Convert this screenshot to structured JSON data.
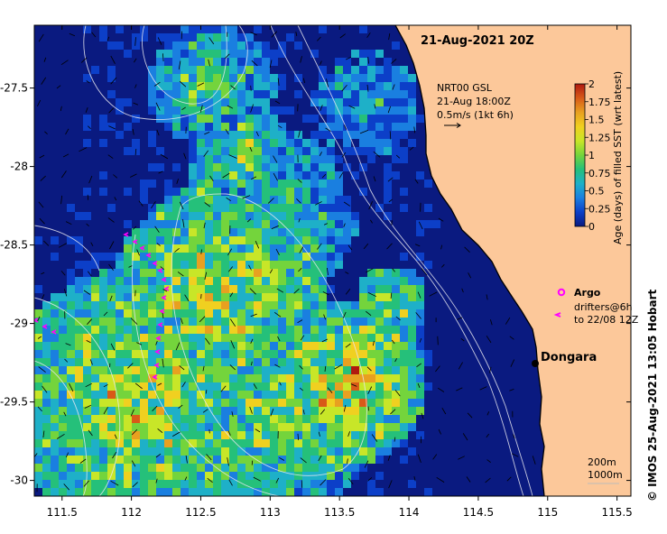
{
  "title": "21-Aug-2021 20Z",
  "product": {
    "line1": "NRT00 GSL",
    "line2": "21-Aug 18:00Z",
    "line3": "0.5m/s (1kt 6h)"
  },
  "colorbar": {
    "label": "Age (days) of filled SST (wrt latest)",
    "ticks": [
      "0",
      "0.25",
      "0.5",
      "0.75",
      "1",
      "1.25",
      "1.5",
      "1.75",
      "2"
    ],
    "range": [
      0,
      2
    ],
    "colors": [
      "#0a1a80",
      "#0c3fc8",
      "#1a7fe0",
      "#1eb0c8",
      "#25c07a",
      "#74d43c",
      "#c8e628",
      "#f0d020",
      "#e8a020",
      "#d85a18",
      "#b01a10"
    ]
  },
  "legend": {
    "argo": "Argo",
    "drifters_line1": "drifters@6h",
    "drifters_line2": "to 22/08 12Z"
  },
  "place": {
    "name": "Dongara",
    "lon": 114.93,
    "lat": -29.27
  },
  "contours": {
    "label1": "200m",
    "label2": "1000m"
  },
  "credit": "© IMOS 25-Aug-2021 13:05 Hobart",
  "axes": {
    "x_ticks": [
      "111.5",
      "112",
      "112.5",
      "113",
      "113.5",
      "114",
      "114.5",
      "115",
      "115.5"
    ],
    "x_values": [
      111.5,
      112,
      112.5,
      113,
      113.5,
      114,
      114.5,
      115,
      115.5
    ],
    "y_ticks": [
      "-27.5",
      "-28",
      "-28.5",
      "-29",
      "-29.5",
      "-30"
    ],
    "y_values": [
      -27.5,
      -28,
      -28.5,
      -29,
      -29.5,
      -30
    ],
    "lon_range": [
      111.3,
      115.6
    ],
    "lat_range": [
      -30.1,
      -27.1
    ]
  },
  "colors": {
    "land": "#fcc89a",
    "ocean_deep": "#0a1a80",
    "argo": "#ff00ff",
    "drifter": "#ff00ff"
  }
}
